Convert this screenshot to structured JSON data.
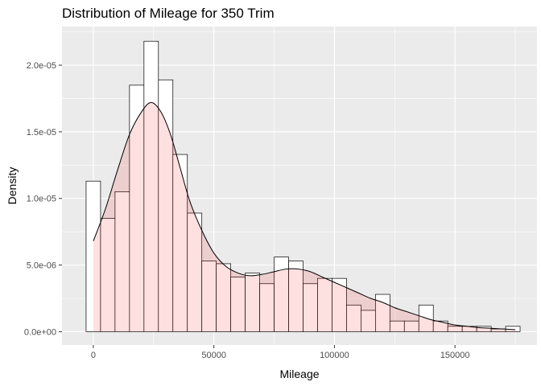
{
  "chart_data": {
    "type": "bar",
    "title": "Distribution of Mileage for 350 Trim",
    "xlabel": "Mileage",
    "ylabel": "Density",
    "xlim": [
      -13000,
      184000
    ],
    "ylim": [
      -1e-06,
      2.29e-05
    ],
    "x_ticks": [
      0,
      50000,
      100000,
      150000
    ],
    "x_tick_labels": [
      "0",
      "50000",
      "100000",
      "150000"
    ],
    "y_ticks": [
      0,
      5e-06,
      1e-05,
      1.5e-05,
      2e-05
    ],
    "y_tick_labels": [
      "0.0e+00",
      "5.0e-06",
      "1.0e-05",
      "1.5e-05",
      "2.0e-05"
    ],
    "grid": true,
    "histogram": {
      "bin_width": 6000,
      "first_bin_center": 0,
      "bar_fill": "#ffffff",
      "bar_outline": "#000000",
      "values": [
        1.13e-05,
        8.5e-06,
        1.05e-05,
        1.85e-05,
        2.18e-05,
        1.89e-05,
        1.33e-05,
        8.9e-06,
        5.3e-06,
        5.1e-06,
        4.1e-06,
        4.4e-06,
        3.6e-06,
        5.6e-06,
        5.3e-06,
        3.6e-06,
        4e-06,
        4e-06,
        2e-06,
        1.6e-06,
        2.8e-06,
        8e-07,
        8e-07,
        2e-06,
        8e-07,
        4e-07,
        4e-07,
        4e-07,
        2e-07,
        4e-07
      ]
    },
    "density": {
      "fill": "#ff0000",
      "fill_opacity": 0.12,
      "line_color": "#000000",
      "x": [
        0,
        5000,
        10000,
        15000,
        20000,
        24000,
        28000,
        32000,
        36000,
        40000,
        45000,
        50000,
        55000,
        60000,
        65000,
        70000,
        75000,
        80000,
        85000,
        90000,
        95000,
        100000,
        105000,
        110000,
        115000,
        120000,
        125000,
        130000,
        135000,
        140000,
        145000,
        150000,
        155000,
        160000,
        165000,
        170000,
        175000
      ],
      "y": [
        6.8e-06,
        9.2e-06,
        1.21e-05,
        1.48e-05,
        1.65e-05,
        1.72e-05,
        1.65e-05,
        1.48e-05,
        1.23e-05,
        9.8e-06,
        7.6e-06,
        5.9e-06,
        4.9e-06,
        4.4e-06,
        4.2e-06,
        4.3e-06,
        4.5e-06,
        4.7e-06,
        4.7e-06,
        4.5e-06,
        4.1e-06,
        3.7e-06,
        3.3e-06,
        2.9e-06,
        2.5e-06,
        2.2e-06,
        1.8e-06,
        1.5e-06,
        1.2e-06,
        9e-07,
        7e-07,
        5e-07,
        4e-07,
        3e-07,
        2.5e-07,
        2e-07,
        1.5e-07
      ]
    }
  }
}
